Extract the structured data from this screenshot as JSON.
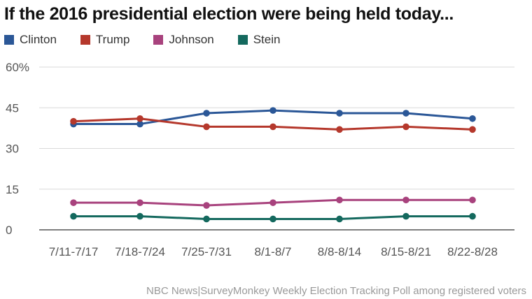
{
  "title": "If the 2016 presidential election were being held today...",
  "source": "NBC News|SurveyMonkey Weekly Election Tracking Poll among registered voters",
  "chart_data": {
    "type": "line",
    "title": "If the 2016 presidential election were being held today...",
    "categories": [
      "7/11-7/17",
      "7/18-7/24",
      "7/25-7/31",
      "8/1-8/7",
      "8/8-8/14",
      "8/15-8/21",
      "8/22-8/28"
    ],
    "ylim": [
      0,
      60
    ],
    "yticks": [
      0,
      15,
      30,
      45,
      60
    ],
    "ytick_labels": [
      "0",
      "15",
      "30",
      "45",
      "60%"
    ],
    "grid": true,
    "legend_position": "top-left",
    "series": [
      {
        "name": "Clinton",
        "color": "#2b5797",
        "values": [
          39,
          39,
          43,
          44,
          43,
          43,
          41
        ]
      },
      {
        "name": "Trump",
        "color": "#b5382c",
        "values": [
          40,
          41,
          38,
          38,
          37,
          38,
          37
        ]
      },
      {
        "name": "Johnson",
        "color": "#a8427d",
        "values": [
          10,
          10,
          9,
          10,
          11,
          11,
          11
        ]
      },
      {
        "name": "Stein",
        "color": "#14695e",
        "values": [
          5,
          5,
          4,
          4,
          4,
          5,
          5
        ]
      }
    ]
  }
}
